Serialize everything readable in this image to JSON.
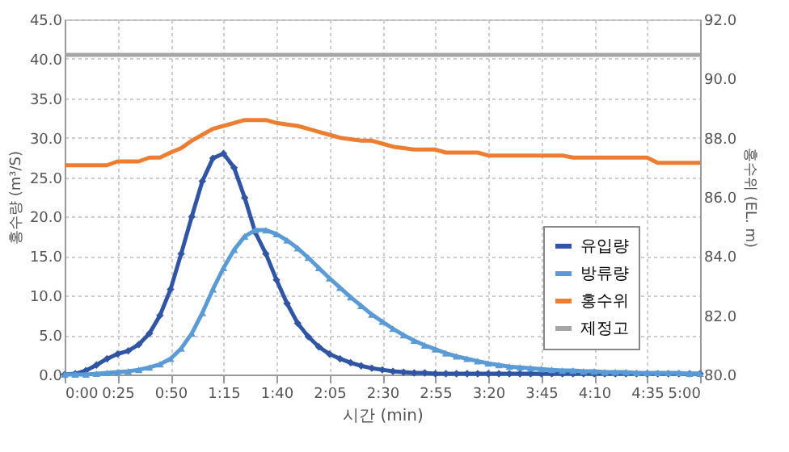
{
  "chart_data": {
    "type": "line",
    "xlabel": "시간 (min)",
    "ylabel": "홍수량 (m³/S)",
    "y2label": "홍수위 (EL. m)",
    "xlim": [
      0,
      300
    ],
    "xticks": [
      {
        "value": 0,
        "label": "0:00"
      },
      {
        "value": 25,
        "label": "0:25"
      },
      {
        "value": 50,
        "label": "0:50"
      },
      {
        "value": 75,
        "label": "1:15"
      },
      {
        "value": 100,
        "label": "1:40"
      },
      {
        "value": 125,
        "label": "2:05"
      },
      {
        "value": 150,
        "label": "2:30"
      },
      {
        "value": 175,
        "label": "2:55"
      },
      {
        "value": 200,
        "label": "3:20"
      },
      {
        "value": 225,
        "label": "3:45"
      },
      {
        "value": 250,
        "label": "4:10"
      },
      {
        "value": 275,
        "label": "4:35"
      },
      {
        "value": 300,
        "label": "5:00"
      }
    ],
    "ylim": [
      0,
      45
    ],
    "yticks": [
      {
        "value": 0,
        "label": "0.0"
      },
      {
        "value": 5,
        "label": "5.0"
      },
      {
        "value": 10,
        "label": "10.0"
      },
      {
        "value": 15,
        "label": "15.0"
      },
      {
        "value": 20,
        "label": "20.0"
      },
      {
        "value": 25,
        "label": "25.0"
      },
      {
        "value": 30,
        "label": "30.0"
      },
      {
        "value": 35,
        "label": "35.0"
      },
      {
        "value": 40,
        "label": "40.0"
      },
      {
        "value": 45,
        "label": "45.0"
      }
    ],
    "y2lim": [
      80,
      92
    ],
    "y2ticks": [
      {
        "value": 80,
        "label": "80.0"
      },
      {
        "value": 82,
        "label": "82.0"
      },
      {
        "value": 84,
        "label": "84.0"
      },
      {
        "value": 86,
        "label": "86.0"
      },
      {
        "value": 88,
        "label": "88.0"
      },
      {
        "value": 90,
        "label": "90.0"
      },
      {
        "value": 92,
        "label": "92.0"
      }
    ],
    "grid": true,
    "legend": "bottom right",
    "series": [
      {
        "name": "유입량",
        "color": "#2f55a4",
        "marker": "diamond",
        "x": [
          0,
          5,
          10,
          15,
          20,
          25,
          30,
          35,
          40,
          45,
          50,
          55,
          60,
          65,
          70,
          75,
          80,
          85,
          90,
          95,
          100,
          105,
          110,
          115,
          120,
          125,
          130,
          135,
          140,
          145,
          150,
          155,
          160,
          165,
          170,
          175,
          180,
          185,
          190,
          195,
          200,
          205,
          210,
          215,
          220,
          225,
          230,
          235,
          240,
          245,
          250,
          255,
          260,
          265,
          270,
          275,
          280,
          285,
          290,
          295,
          300
        ],
        "values": [
          0,
          0.1,
          0.5,
          1.2,
          2,
          2.6,
          3,
          3.8,
          5.2,
          7.5,
          10.8,
          15.3,
          20,
          24.5,
          27.4,
          28,
          26.2,
          22.4,
          18,
          15.3,
          12,
          9,
          6.5,
          4.8,
          3.5,
          2.6,
          2,
          1.5,
          1.1,
          0.8,
          0.6,
          0.4,
          0.3,
          0.2,
          0.2,
          0.1,
          0.1,
          0.1,
          0.1,
          0.1,
          0.1,
          0.1,
          0.1,
          0.1,
          0.1,
          0.1,
          0.1,
          0.1,
          0.1,
          0.1,
          0.1,
          0.1,
          0.1,
          0.1,
          0.1,
          0.1,
          0.1,
          0.1,
          0.1,
          0.1,
          0.1
        ]
      },
      {
        "name": "방류량",
        "color": "#5b9bd5",
        "marker": "triangle",
        "x": [
          0,
          5,
          10,
          15,
          20,
          25,
          30,
          35,
          40,
          45,
          50,
          55,
          60,
          65,
          70,
          75,
          80,
          85,
          90,
          95,
          100,
          105,
          110,
          115,
          120,
          125,
          130,
          135,
          140,
          145,
          150,
          155,
          160,
          165,
          170,
          175,
          180,
          185,
          190,
          195,
          200,
          205,
          210,
          215,
          220,
          225,
          230,
          235,
          240,
          245,
          250,
          255,
          260,
          265,
          270,
          275,
          280,
          285,
          290,
          295,
          300
        ],
        "values": [
          0,
          0,
          0,
          0.1,
          0.2,
          0.3,
          0.4,
          0.6,
          0.9,
          1.3,
          2,
          3.3,
          5.2,
          7.8,
          10.8,
          13.5,
          15.8,
          17.5,
          18.3,
          18.3,
          17.8,
          17,
          16,
          14.8,
          13.5,
          12.2,
          11,
          9.8,
          8.7,
          7.6,
          6.7,
          5.8,
          5,
          4.3,
          3.7,
          3.2,
          2.7,
          2.3,
          2,
          1.7,
          1.4,
          1.2,
          1,
          0.9,
          0.8,
          0.7,
          0.6,
          0.5,
          0.5,
          0.4,
          0.4,
          0.3,
          0.3,
          0.3,
          0.2,
          0.2,
          0.2,
          0.2,
          0.2,
          0.1,
          0.1
        ]
      },
      {
        "name": "홍수위",
        "color": "#ed7d31",
        "marker": "none",
        "axis": "y2",
        "x": [
          0,
          20,
          25,
          35,
          40,
          45,
          50,
          55,
          60,
          65,
          70,
          75,
          80,
          85,
          90,
          95,
          100,
          105,
          110,
          115,
          120,
          125,
          130,
          135,
          140,
          145,
          150,
          155,
          160,
          165,
          175,
          180,
          195,
          200,
          235,
          240,
          275,
          280,
          300
        ],
        "values": [
          87.07,
          87.07,
          87.2,
          87.2,
          87.33,
          87.33,
          87.5,
          87.65,
          87.9,
          88.1,
          88.3,
          88.4,
          88.5,
          88.6,
          88.6,
          88.6,
          88.5,
          88.45,
          88.4,
          88.3,
          88.2,
          88.1,
          88.0,
          87.95,
          87.9,
          87.9,
          87.8,
          87.7,
          87.65,
          87.6,
          87.6,
          87.5,
          87.5,
          87.4,
          87.4,
          87.33,
          87.33,
          87.15,
          87.15
        ]
      },
      {
        "name": "제정고",
        "color": "#a5a5a5",
        "marker": "none",
        "axis": "y2",
        "x": [
          0,
          300
        ],
        "values": [
          90.8,
          90.8
        ]
      }
    ]
  }
}
